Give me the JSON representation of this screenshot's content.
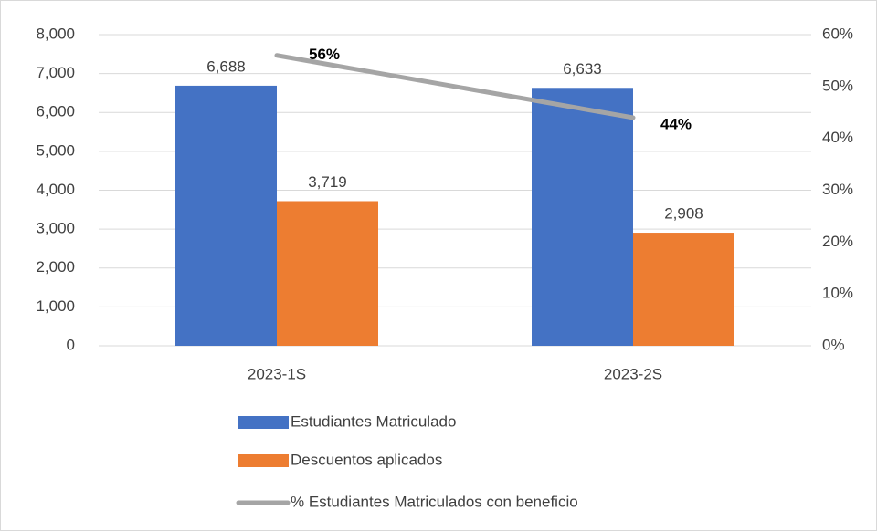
{
  "chart_data": {
    "type": "bar",
    "categories": [
      "2023-1S",
      "2023-2S"
    ],
    "series": [
      {
        "name": "Estudiantes Matriculado",
        "color": "#4472c4",
        "values": [
          6688,
          6633
        ],
        "value_labels": [
          "6,688",
          "6,633"
        ]
      },
      {
        "name": "Descuentos aplicados",
        "color": "#ed7d31",
        "values": [
          3719,
          2908
        ],
        "value_labels": [
          "3,719",
          "2,908"
        ]
      },
      {
        "name": "% Estudiantes Matriculados con beneficio",
        "type": "line",
        "axis": "y2",
        "color": "#a5a5a5",
        "values": [
          56,
          44
        ],
        "value_labels": [
          "56%",
          "44%"
        ]
      }
    ],
    "ylim": [
      0,
      8000
    ],
    "yticks": [
      0,
      {
        "value": 1000,
        "label": "1,000"
      },
      {
        "value": 2000,
        "label": "2,000"
      },
      {
        "value": 3000,
        "label": "3,000"
      },
      {
        "value": 4000,
        "label": "4,000"
      },
      {
        "value": 5000,
        "label": "5,000"
      },
      {
        "value": 6000,
        "label": "6,000"
      },
      {
        "value": 7000,
        "label": "7,000"
      },
      {
        "value": 8000,
        "label": "8,000"
      }
    ],
    "y2lim": [
      0,
      60
    ],
    "y2ticks": [
      {
        "value": 0,
        "label": "0%"
      },
      {
        "value": 10,
        "label": "10%"
      },
      {
        "value": 20,
        "label": "20%"
      },
      {
        "value": 30,
        "label": "30%"
      },
      {
        "value": 40,
        "label": "40%"
      },
      {
        "value": 50,
        "label": "50%"
      },
      {
        "value": 60,
        "label": "60%"
      }
    ],
    "grid": true,
    "legend": "bottom"
  }
}
